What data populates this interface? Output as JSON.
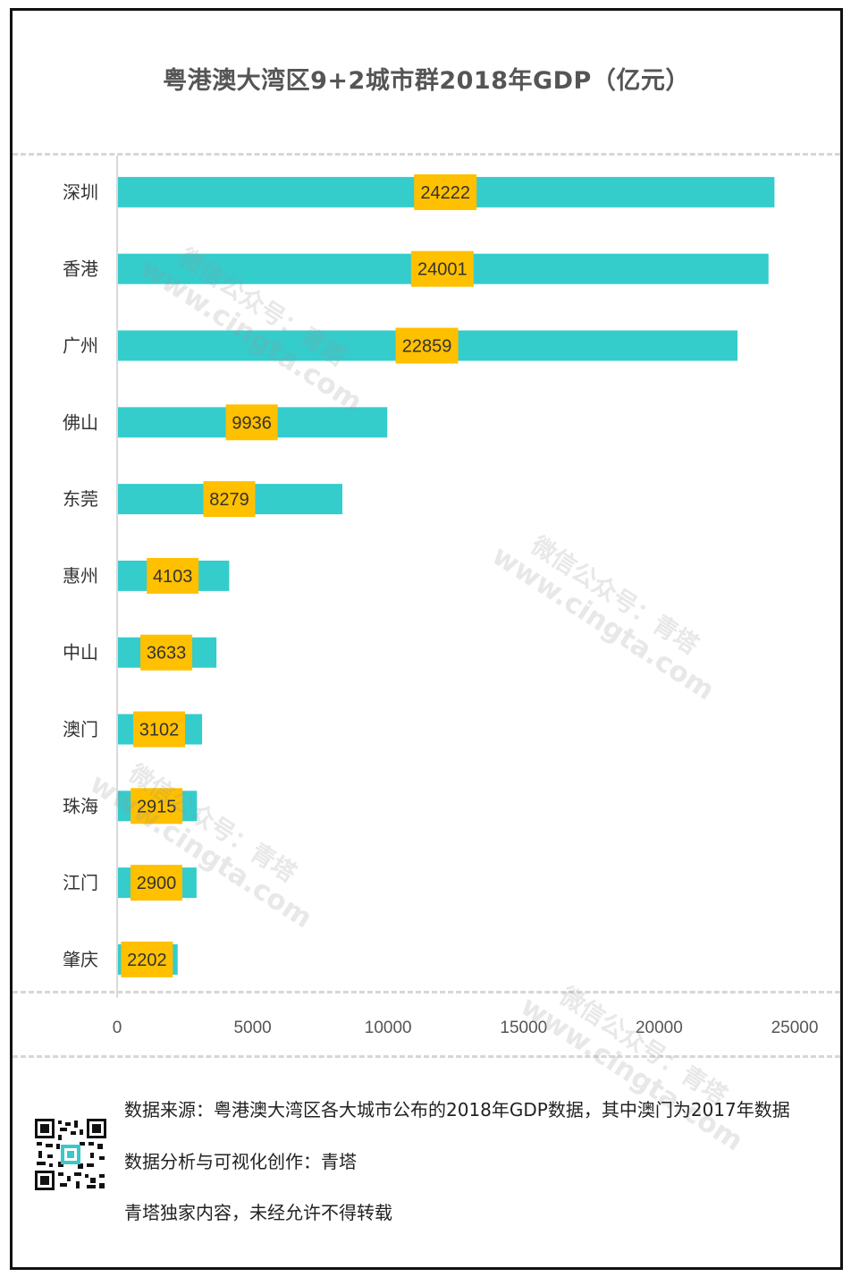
{
  "chart_data": {
    "type": "bar",
    "orientation": "horizontal",
    "title": "粤港澳大湾区9+2城市群2018年GDP（亿元）",
    "categories": [
      "深圳",
      "香港",
      "广州",
      "佛山",
      "东莞",
      "惠州",
      "中山",
      "澳门",
      "珠海",
      "江门",
      "肇庆"
    ],
    "values": [
      24222,
      24001,
      22859,
      9936,
      8279,
      4103,
      3633,
      3102,
      2915,
      2900,
      2202
    ],
    "data_labels": [
      "24222",
      "24001",
      "22859",
      "9936",
      "8279",
      "4103",
      "3633",
      "3102",
      "2915",
      "2900",
      "2202"
    ],
    "xlim": [
      0,
      25000
    ],
    "xticks": [
      0,
      5000,
      10000,
      15000,
      20000,
      25000
    ],
    "xtick_labels": [
      "0",
      "5000",
      "10000",
      "15000",
      "20000",
      "25000"
    ],
    "grid": false,
    "legend": "none",
    "colors": {
      "bar": "#35cccc",
      "label_bg": "#ffc000",
      "axis": "#d9d9d9"
    }
  },
  "footer": {
    "source": "数据来源：粤港澳大湾区各大城市公布的2018年GDP数据，其中澳门为2017年数据",
    "analysis": "数据分析与可视化创作：青塔",
    "copyright": "青塔独家内容，未经允许不得转载"
  },
  "watermark": {
    "line1": "微信公众号：青塔",
    "line2": "www.cingta.com"
  },
  "qr_icon": "qr-code-icon"
}
